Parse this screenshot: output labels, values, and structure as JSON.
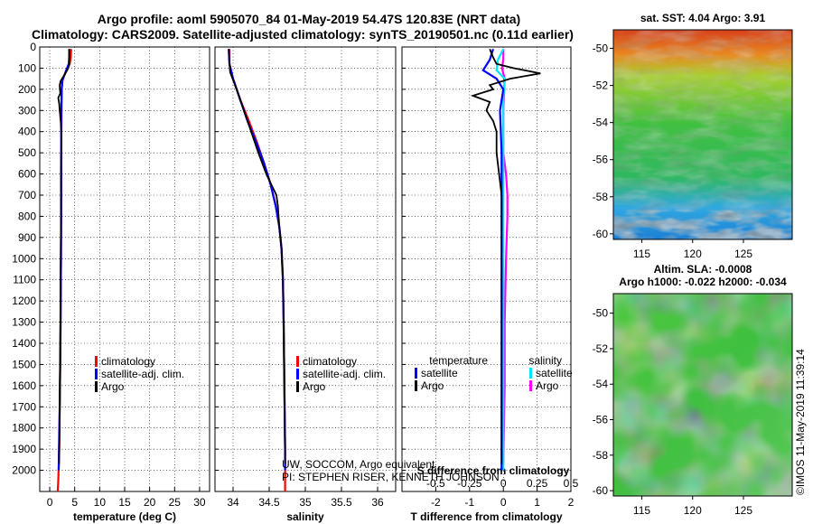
{
  "header": {
    "title_line1": "Argo profile: aoml 5905070_84 01-May-2019 54.47S 120.83E (NRT data)",
    "title_line2": "Climatology: CARS2009. Satellite-adjusted climatology: synTS_20190501.nc (0.11d earlier)"
  },
  "maps": {
    "sst_title": "sat. SST: 4.04 Argo: 3.91",
    "sla_title1": "Altim. SLA: -0.0008",
    "sla_title2": "Argo h1000: -0.022 h2000: -0.034",
    "lat_ticks": [
      "-50",
      "-52",
      "-54",
      "-56",
      "-58",
      "-60"
    ],
    "lon_ticks": [
      "115",
      "120",
      "125"
    ],
    "sst_colors": {
      "warm": "#e8401a",
      "mid": "#3fbf3f",
      "cold": "#1a8fd6",
      "deep": "#0a2a8c"
    },
    "sla_colors": {
      "warm": "#e89020",
      "mid": "#40c040",
      "cold": "#2090d0"
    }
  },
  "credit": "©IMOS 11-May-2019 11:39:14",
  "attribution": {
    "line1": "UW, SOCCOM, Argo equivalent",
    "line2": "PI: STEPHEN RISER, KENNETH JOHNSON"
  },
  "colors": {
    "climatology": "#ff0000",
    "satellite": "#0000ff",
    "argo": "#000000",
    "satellite_sal": "#00e5ff",
    "argo_sal": "#ff00ff"
  },
  "chart_data": [
    {
      "type": "line",
      "xlabel": "temperature (deg C)",
      "ylabel": "",
      "xlim": [
        -2,
        32
      ],
      "ylim": [
        2100,
        0
      ],
      "xticks": [
        0,
        5,
        10,
        15,
        20,
        25,
        30
      ],
      "xtick_labels": [
        "0",
        "5",
        "10",
        "15",
        "20",
        "25",
        "30"
      ],
      "yticks": [
        0,
        100,
        200,
        300,
        400,
        500,
        600,
        700,
        800,
        900,
        1000,
        1100,
        1200,
        1300,
        1400,
        1500,
        1600,
        1700,
        1800,
        1900,
        2000
      ],
      "ytick_labels": [
        "0",
        "100",
        "200",
        "300",
        "400",
        "500",
        "600",
        "700",
        "800",
        "900",
        "1000",
        "1100",
        "1200",
        "1300",
        "1400",
        "1500",
        "1600",
        "1700",
        "1800",
        "1900",
        "2000"
      ],
      "legend": [
        "climatology",
        "satellite-adj. clim.",
        "Argo"
      ],
      "series": [
        {
          "name": "climatology",
          "points": [
            [
              4.3,
              10
            ],
            [
              4.2,
              50
            ],
            [
              4.0,
              80
            ],
            [
              3.4,
              110
            ],
            [
              2.6,
              150
            ],
            [
              2.4,
              200
            ],
            [
              2.35,
              300
            ],
            [
              2.3,
              500
            ],
            [
              2.3,
              700
            ],
            [
              2.25,
              1000
            ],
            [
              2.15,
              1400
            ],
            [
              2.0,
              1700
            ],
            [
              1.9,
              1900
            ],
            [
              1.7,
              2050
            ],
            [
              1.6,
              2100
            ]
          ]
        },
        {
          "name": "satellite-adj. clim.",
          "points": [
            [
              3.9,
              10
            ],
            [
              3.9,
              50
            ],
            [
              3.8,
              80
            ],
            [
              3.3,
              110
            ],
            [
              2.5,
              160
            ],
            [
              2.4,
              200
            ],
            [
              2.3,
              300
            ],
            [
              2.3,
              500
            ],
            [
              2.3,
              700
            ],
            [
              2.25,
              1000
            ],
            [
              2.15,
              1400
            ],
            [
              2.0,
              1700
            ],
            [
              1.85,
              1900
            ],
            [
              1.8,
              2000
            ]
          ]
        },
        {
          "name": "Argo",
          "points": [
            [
              3.91,
              10
            ],
            [
              3.9,
              50
            ],
            [
              3.9,
              80
            ],
            [
              3.7,
              100
            ],
            [
              3.0,
              130
            ],
            [
              2.2,
              160
            ],
            [
              2.0,
              180
            ],
            [
              2.1,
              220
            ],
            [
              1.7,
              240
            ],
            [
              1.9,
              270
            ],
            [
              2.0,
              300
            ],
            [
              2.2,
              350
            ],
            [
              2.3,
              400
            ],
            [
              2.35,
              450
            ],
            [
              2.3,
              500
            ],
            [
              2.25,
              600
            ],
            [
              2.25,
              700
            ],
            [
              2.25,
              800
            ],
            [
              2.2,
              1000
            ],
            [
              2.1,
              1400
            ],
            [
              2.0,
              1700
            ],
            [
              1.9,
              1900
            ],
            [
              1.85,
              1970
            ]
          ]
        }
      ]
    },
    {
      "type": "line",
      "xlabel": "salinity",
      "xlim": [
        33.75,
        36.25
      ],
      "ylim": [
        2100,
        0
      ],
      "xticks": [
        34,
        34.5,
        35,
        35.5,
        36
      ],
      "xtick_labels": [
        "34",
        "34.5",
        "35",
        "35.5",
        "36"
      ],
      "legend": [
        "climatology",
        "satellite-adj. clim.",
        "Argo"
      ],
      "series": [
        {
          "name": "climatology",
          "points": [
            [
              33.95,
              10
            ],
            [
              33.95,
              80
            ],
            [
              34.0,
              150
            ],
            [
              34.1,
              250
            ],
            [
              34.22,
              350
            ],
            [
              34.33,
              450
            ],
            [
              34.43,
              550
            ],
            [
              34.52,
              650
            ],
            [
              34.59,
              750
            ],
            [
              34.64,
              850
            ],
            [
              34.67,
              950
            ],
            [
              34.69,
              1100
            ],
            [
              34.7,
              1300
            ],
            [
              34.71,
              1600
            ],
            [
              34.72,
              1900
            ],
            [
              34.72,
              2100
            ]
          ]
        },
        {
          "name": "satellite-adj. clim.",
          "points": [
            [
              33.94,
              10
            ],
            [
              33.95,
              80
            ],
            [
              34.0,
              150
            ],
            [
              34.1,
              250
            ],
            [
              34.2,
              350
            ],
            [
              34.32,
              450
            ],
            [
              34.43,
              550
            ],
            [
              34.52,
              650
            ],
            [
              34.59,
              750
            ],
            [
              34.64,
              850
            ],
            [
              34.67,
              950
            ],
            [
              34.69,
              1100
            ],
            [
              34.7,
              1300
            ],
            [
              34.71,
              1600
            ],
            [
              34.72,
              1900
            ],
            [
              34.72,
              2000
            ]
          ]
        },
        {
          "name": "Argo",
          "points": [
            [
              33.94,
              10
            ],
            [
              33.95,
              80
            ],
            [
              33.96,
              120
            ],
            [
              34.05,
              200
            ],
            [
              34.15,
              300
            ],
            [
              34.25,
              400
            ],
            [
              34.35,
              500
            ],
            [
              34.46,
              600
            ],
            [
              34.6,
              700
            ],
            [
              34.62,
              750
            ],
            [
              34.64,
              850
            ],
            [
              34.67,
              950
            ],
            [
              34.69,
              1100
            ],
            [
              34.7,
              1300
            ],
            [
              34.71,
              1600
            ],
            [
              34.72,
              1900
            ],
            [
              34.72,
              1970
            ]
          ]
        }
      ]
    },
    {
      "type": "line",
      "xlabel": "T difference from climatology",
      "inner_label": "S difference from climatology",
      "xlim": [
        -3,
        2
      ],
      "ylim": [
        2100,
        0
      ],
      "xticks": [
        -2,
        -1,
        0,
        1,
        2
      ],
      "xtick_labels": [
        "-2",
        "-1",
        "0",
        "1",
        "2"
      ],
      "sal_ticks": [
        -0.5,
        -0.25,
        0,
        0.25,
        0.5
      ],
      "sal_tick_labels": [
        "-0.5",
        "-0.25",
        "0",
        "0.25",
        "0.5"
      ],
      "sal_scale": 4,
      "legend_temperature": "temperature",
      "legend_salinity": "salinity",
      "legend_items": [
        "satellite",
        "Argo",
        "satellite",
        "Argo"
      ],
      "series": [
        {
          "name": "temperature satellite",
          "points": [
            [
              -0.3,
              10
            ],
            [
              -0.4,
              60
            ],
            [
              -0.6,
              110
            ],
            [
              -0.2,
              150
            ],
            [
              0.0,
              200
            ],
            [
              -0.1,
              300
            ],
            [
              -0.05,
              500
            ],
            [
              -0.05,
              800
            ],
            [
              -0.05,
              1200
            ],
            [
              -0.05,
              1600
            ],
            [
              -0.05,
              2000
            ]
          ]
        },
        {
          "name": "temperature Argo",
          "points": [
            [
              -0.4,
              10
            ],
            [
              -0.3,
              50
            ],
            [
              -0.2,
              80
            ],
            [
              0.3,
              100
            ],
            [
              1.1,
              125
            ],
            [
              0.2,
              150
            ],
            [
              -0.4,
              180
            ],
            [
              -0.3,
              200
            ],
            [
              -0.9,
              230
            ],
            [
              -0.4,
              260
            ],
            [
              -0.5,
              300
            ],
            [
              -0.3,
              350
            ],
            [
              -0.2,
              400
            ],
            [
              -0.2,
              500
            ],
            [
              -0.05,
              700
            ],
            [
              -0.05,
              1000
            ],
            [
              -0.05,
              1500
            ],
            [
              -0.05,
              1970
            ]
          ]
        },
        {
          "name": "salinity satellite",
          "points": [
            [
              0.0,
              10
            ],
            [
              -0.04,
              60
            ],
            [
              -0.05,
              110
            ],
            [
              0.01,
              150
            ],
            [
              0.0,
              250
            ],
            [
              0.0,
              500
            ],
            [
              0.0,
              800
            ],
            [
              0.0,
              1200
            ],
            [
              0.0,
              1600
            ],
            [
              0.0,
              2000
            ]
          ]
        },
        {
          "name": "salinity Argo",
          "points": [
            [
              0.0,
              10
            ],
            [
              0.0,
              60
            ],
            [
              -0.01,
              100
            ],
            [
              0.01,
              150
            ],
            [
              0.0,
              300
            ],
            [
              0.0,
              500
            ],
            [
              0.02,
              600
            ],
            [
              0.03,
              700
            ],
            [
              0.03,
              800
            ],
            [
              0.02,
              1000
            ],
            [
              0.01,
              1300
            ],
            [
              0.01,
              1600
            ],
            [
              0.0,
              1970
            ]
          ]
        }
      ]
    }
  ]
}
